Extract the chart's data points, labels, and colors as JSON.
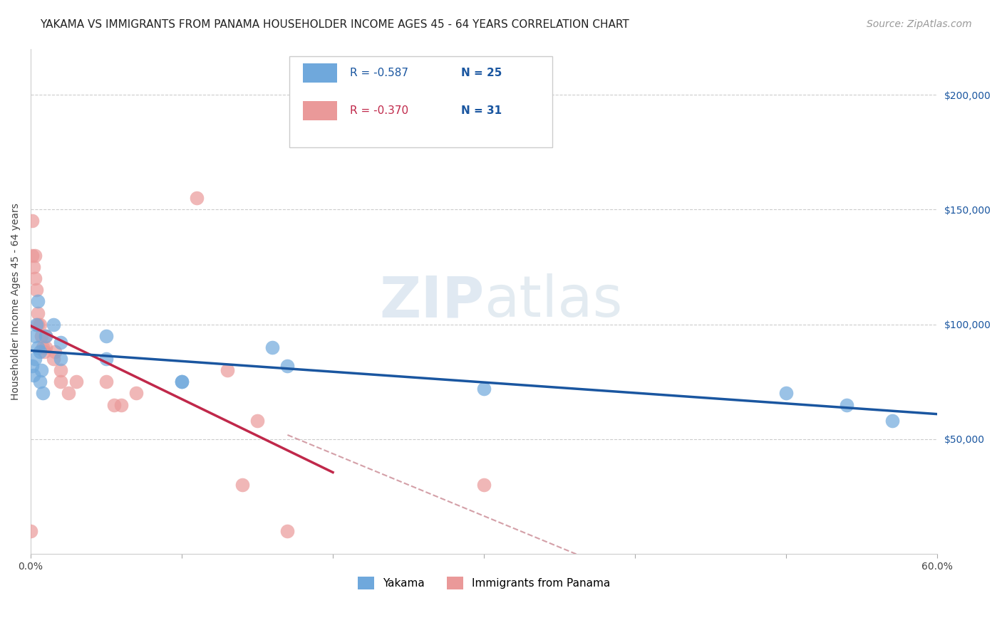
{
  "title": "YAKAMA VS IMMIGRANTS FROM PANAMA HOUSEHOLDER INCOME AGES 45 - 64 YEARS CORRELATION CHART",
  "source": "Source: ZipAtlas.com",
  "ylabel": "Householder Income Ages 45 - 64 years",
  "xlim": [
    0.0,
    0.6
  ],
  "ylim": [
    0,
    220000
  ],
  "xticks": [
    0.0,
    0.1,
    0.2,
    0.3,
    0.4,
    0.5,
    0.6
  ],
  "xticklabels": [
    "0.0%",
    "",
    "",
    "",
    "",
    "",
    "60.0%"
  ],
  "yticks_right": [
    50000,
    100000,
    150000,
    200000
  ],
  "ytick_labels_right": [
    "$50,000",
    "$100,000",
    "$150,000",
    "$200,000"
  ],
  "legend_blue_r": "-0.587",
  "legend_blue_n": "25",
  "legend_pink_r": "-0.370",
  "legend_pink_n": "31",
  "blue_color": "#6fa8dc",
  "pink_color": "#ea9999",
  "trendline_blue_color": "#1a56a0",
  "trendline_pink_solid_color": "#c0284a",
  "trendline_pink_dashed_color": "#d4a0a8",
  "yakama_x": [
    0.001,
    0.002,
    0.003,
    0.003,
    0.004,
    0.005,
    0.005,
    0.006,
    0.006,
    0.007,
    0.008,
    0.01,
    0.015,
    0.02,
    0.02,
    0.05,
    0.05,
    0.1,
    0.1,
    0.16,
    0.17,
    0.3,
    0.5,
    0.54,
    0.57
  ],
  "yakama_y": [
    82000,
    78000,
    95000,
    85000,
    100000,
    110000,
    90000,
    88000,
    75000,
    80000,
    70000,
    95000,
    100000,
    92000,
    85000,
    95000,
    85000,
    75000,
    75000,
    90000,
    82000,
    72000,
    70000,
    65000,
    58000
  ],
  "panama_x": [
    0.0,
    0.001,
    0.001,
    0.002,
    0.003,
    0.003,
    0.004,
    0.005,
    0.005,
    0.006,
    0.007,
    0.008,
    0.009,
    0.01,
    0.01,
    0.015,
    0.016,
    0.02,
    0.02,
    0.025,
    0.03,
    0.05,
    0.055,
    0.06,
    0.07,
    0.11,
    0.13,
    0.14,
    0.15,
    0.17,
    0.3
  ],
  "panama_y": [
    10000,
    145000,
    130000,
    125000,
    130000,
    120000,
    115000,
    105000,
    100000,
    100000,
    95000,
    90000,
    88000,
    90000,
    95000,
    85000,
    88000,
    80000,
    75000,
    70000,
    75000,
    75000,
    65000,
    65000,
    70000,
    155000,
    80000,
    30000,
    58000,
    10000,
    30000
  ],
  "watermark_zip": "ZIP",
  "watermark_atlas": "atlas",
  "background_color": "#ffffff",
  "grid_color": "#cccccc",
  "title_fontsize": 11,
  "axis_fontsize": 10,
  "legend_fontsize": 11,
  "source_fontsize": 10
}
